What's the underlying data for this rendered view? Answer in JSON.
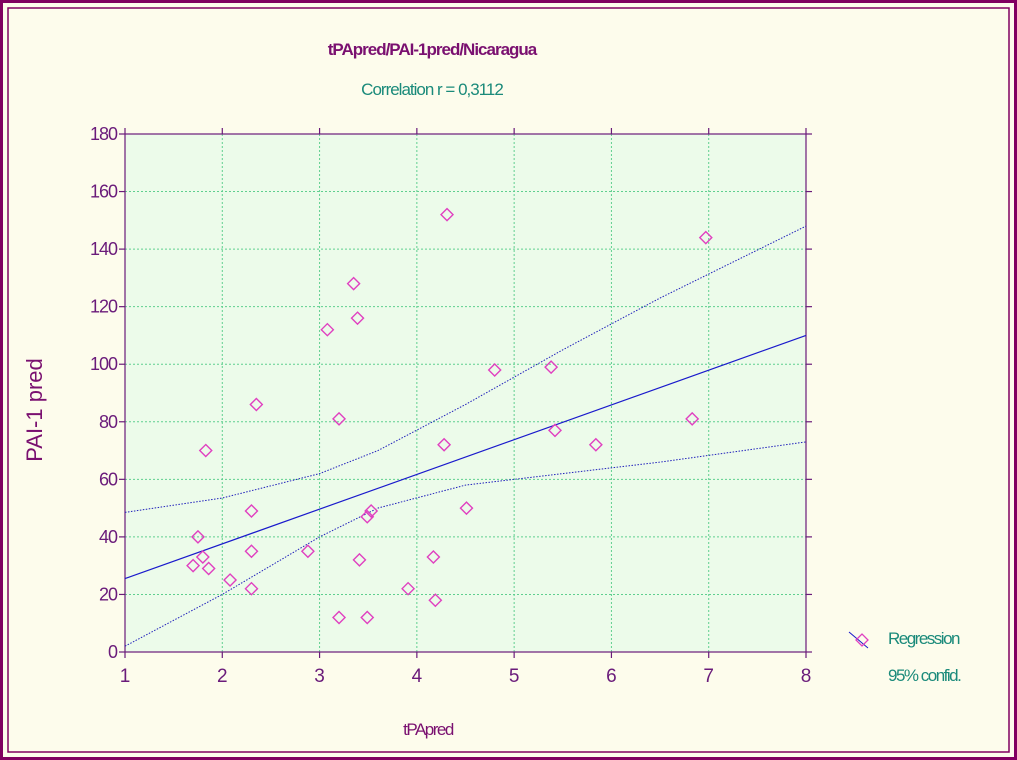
{
  "colors": {
    "background": "#fdfcec",
    "plot_background": "#ecfbea",
    "frame": "#800060",
    "axis": "#6a1b7a",
    "grid": "#5fcf8f",
    "title": "#7a1070",
    "subtitle": "#1a8a7a",
    "marker": "#e040c0",
    "regression_line": "#1a1acc",
    "confidence_line": "#2020bb",
    "legend_text": "#1a8a7a"
  },
  "chart_data": {
    "type": "scatter",
    "title": "tPApred/PAI-1pred/Nicaragua",
    "subtitle": "Correlation r = 0,3112",
    "xlabel": "tPApred",
    "ylabel": "PAI-1 pred",
    "xlim": [
      1,
      8
    ],
    "ylim": [
      0,
      180
    ],
    "x_ticks": [
      1,
      2,
      3,
      4,
      5,
      6,
      7,
      8
    ],
    "y_ticks": [
      0,
      20,
      40,
      60,
      80,
      100,
      120,
      140,
      160,
      180
    ],
    "grid": true,
    "legend_position": "bottom-right",
    "legend": [
      "Regression",
      "95% confid."
    ],
    "regression": {
      "x": [
        1,
        8
      ],
      "y": [
        25.5,
        110
      ]
    },
    "confidence_upper": {
      "x": [
        1,
        2,
        3,
        3.6,
        4.5,
        5.5,
        6.5,
        8
      ],
      "y": [
        48.5,
        53.5,
        62,
        70,
        86,
        105,
        123,
        148
      ]
    },
    "confidence_lower": {
      "x": [
        1,
        2,
        2.5,
        3,
        3.6,
        4.5,
        5.5,
        6.5,
        8
      ],
      "y": [
        2,
        20,
        30,
        40,
        50,
        58,
        62,
        66,
        73
      ]
    },
    "points": [
      {
        "x": 1.7,
        "y": 30
      },
      {
        "x": 1.75,
        "y": 40
      },
      {
        "x": 1.8,
        "y": 33
      },
      {
        "x": 1.83,
        "y": 70
      },
      {
        "x": 1.86,
        "y": 29
      },
      {
        "x": 2.08,
        "y": 25
      },
      {
        "x": 2.3,
        "y": 49
      },
      {
        "x": 2.3,
        "y": 35
      },
      {
        "x": 2.3,
        "y": 22
      },
      {
        "x": 2.35,
        "y": 86
      },
      {
        "x": 2.88,
        "y": 35
      },
      {
        "x": 3.08,
        "y": 112
      },
      {
        "x": 3.2,
        "y": 81
      },
      {
        "x": 3.2,
        "y": 12
      },
      {
        "x": 3.35,
        "y": 128
      },
      {
        "x": 3.39,
        "y": 116
      },
      {
        "x": 3.41,
        "y": 32
      },
      {
        "x": 3.49,
        "y": 47
      },
      {
        "x": 3.49,
        "y": 12
      },
      {
        "x": 3.53,
        "y": 49
      },
      {
        "x": 3.91,
        "y": 22
      },
      {
        "x": 4.17,
        "y": 33
      },
      {
        "x": 4.19,
        "y": 18
      },
      {
        "x": 4.28,
        "y": 72
      },
      {
        "x": 4.31,
        "y": 152
      },
      {
        "x": 4.51,
        "y": 50
      },
      {
        "x": 4.8,
        "y": 98
      },
      {
        "x": 5.38,
        "y": 99
      },
      {
        "x": 5.42,
        "y": 77
      },
      {
        "x": 5.84,
        "y": 72
      },
      {
        "x": 6.83,
        "y": 81
      },
      {
        "x": 6.97,
        "y": 144
      }
    ]
  }
}
